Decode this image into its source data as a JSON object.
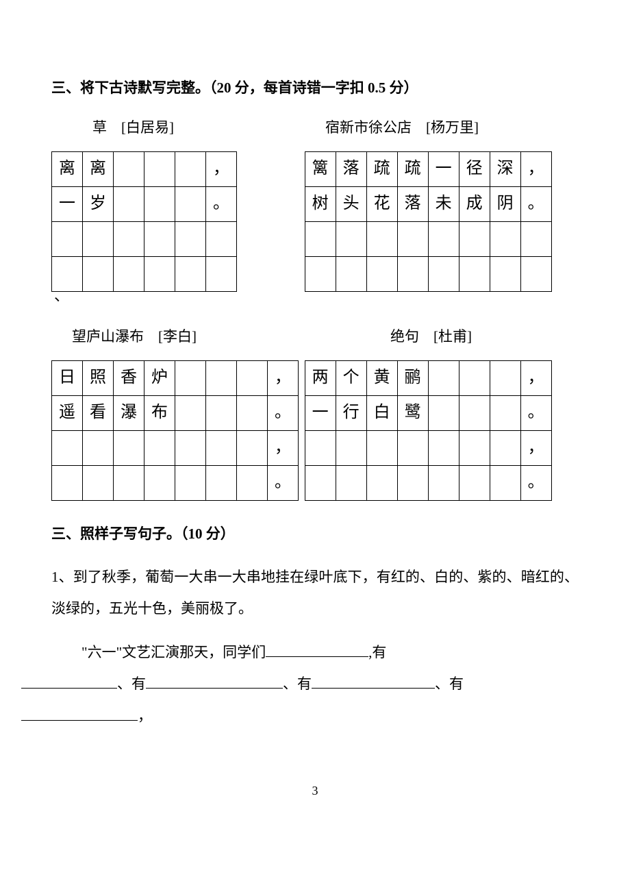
{
  "section3": {
    "heading": "三、将下古诗默写完整。（20 分，每首诗错一字扣 0.5 分）",
    "poemA": {
      "title": "草",
      "author": "[白居易]",
      "grid": [
        [
          "离",
          "离",
          "",
          "",
          "",
          "，"
        ],
        [
          "一",
          "岁",
          "",
          "",
          "",
          "。"
        ],
        [
          "",
          "",
          "",
          "",
          "",
          ""
        ],
        [
          "",
          "",
          "",
          "",
          "",
          ""
        ]
      ]
    },
    "stray": "、",
    "poemB": {
      "title": "宿新市徐公店",
      "author": "[杨万里]",
      "grid": [
        [
          "篱",
          "落",
          "疏",
          "疏",
          "一",
          "径",
          "深",
          "，"
        ],
        [
          "树",
          "头",
          "花",
          "落",
          "未",
          "成",
          "阴",
          "。"
        ],
        [
          "",
          "",
          "",
          "",
          "",
          "",
          "",
          ""
        ],
        [
          "",
          "",
          "",
          "",
          "",
          "",
          "",
          ""
        ]
      ]
    },
    "poemC": {
      "title": "望庐山瀑布",
      "author": "[李白]",
      "grid": [
        [
          "日",
          "照",
          "香",
          "炉",
          "",
          "",
          "",
          "，"
        ],
        [
          "遥",
          "看",
          "瀑",
          "布",
          "",
          "",
          "",
          "。"
        ],
        [
          "",
          "",
          "",
          "",
          "",
          "",
          "",
          "，"
        ],
        [
          "",
          "",
          "",
          "",
          "",
          "",
          "",
          "。"
        ]
      ]
    },
    "poemD": {
      "title": "绝句",
      "author": "[杜甫]",
      "grid": [
        [
          "两",
          "个",
          "黄",
          "鹂",
          "",
          "",
          "",
          "，"
        ],
        [
          "一",
          "行",
          "白",
          "鹭",
          "",
          "",
          "",
          "。"
        ],
        [
          "",
          "",
          "",
          "",
          "",
          "",
          "",
          "，"
        ],
        [
          "",
          "",
          "",
          "",
          "",
          "",
          "",
          "。"
        ]
      ]
    }
  },
  "section3b": {
    "heading": "三、照样子写句子。（10 分）",
    "q1_prefix": "1、到了秋季，葡萄一大串一大串地挂在绿叶底下，有红的、白的、紫的、暗红的、淡绿的，五光十色，美丽极了。",
    "q1_fill_lead": "\"六一\"文艺汇演那天，同学们",
    "you": ",有",
    "you2": "、有",
    "comma": "，"
  },
  "pageNumber": "3",
  "blankWidths": {
    "w1": 150,
    "w2": 140,
    "w3": 200,
    "w4": 180,
    "w5": 170
  }
}
